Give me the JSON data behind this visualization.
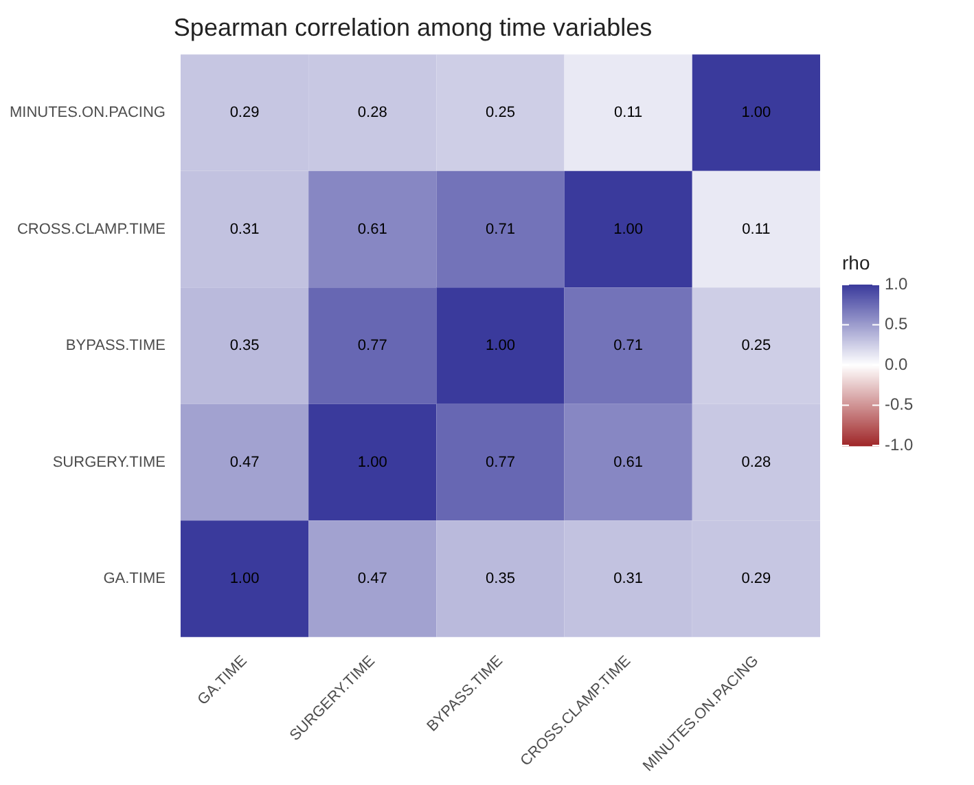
{
  "chart_data": {
    "type": "heatmap",
    "title": "Spearman correlation among time variables",
    "categories": [
      "GA.TIME",
      "SURGERY.TIME",
      "BYPASS.TIME",
      "CROSS.CLAMP.TIME",
      "MINUTES.ON.PACING"
    ],
    "y_categories": [
      "MINUTES.ON.PACING",
      "CROSS.CLAMP.TIME",
      "BYPASS.TIME",
      "SURGERY.TIME",
      "GA.TIME"
    ],
    "cells": [
      [
        0.29,
        0.28,
        0.25,
        0.11,
        1.0
      ],
      [
        0.31,
        0.61,
        0.71,
        1.0,
        0.11
      ],
      [
        0.35,
        0.77,
        1.0,
        0.71,
        0.25
      ],
      [
        0.47,
        1.0,
        0.77,
        0.61,
        0.28
      ],
      [
        1.0,
        0.47,
        0.35,
        0.31,
        0.29
      ]
    ],
    "cell_labels": [
      [
        "0.29",
        "0.28",
        "0.25",
        "0.11",
        "1.00"
      ],
      [
        "0.31",
        "0.61",
        "0.71",
        "1.00",
        "0.11"
      ],
      [
        "0.35",
        "0.77",
        "1.00",
        "0.71",
        "0.25"
      ],
      [
        "0.47",
        "1.00",
        "0.77",
        "0.61",
        "0.28"
      ],
      [
        "1.00",
        "0.47",
        "0.35",
        "0.31",
        "0.29"
      ]
    ],
    "clabel": "rho",
    "clim": [
      -1,
      1
    ],
    "cticks": [
      {
        "value": -1,
        "label": "-1.0"
      },
      {
        "value": -0.5,
        "label": "-0.5"
      },
      {
        "value": 0,
        "label": "0.0"
      },
      {
        "value": 0.5,
        "label": "0.5"
      },
      {
        "value": 1,
        "label": "1.0"
      }
    ],
    "grid": false,
    "legend": false
  }
}
